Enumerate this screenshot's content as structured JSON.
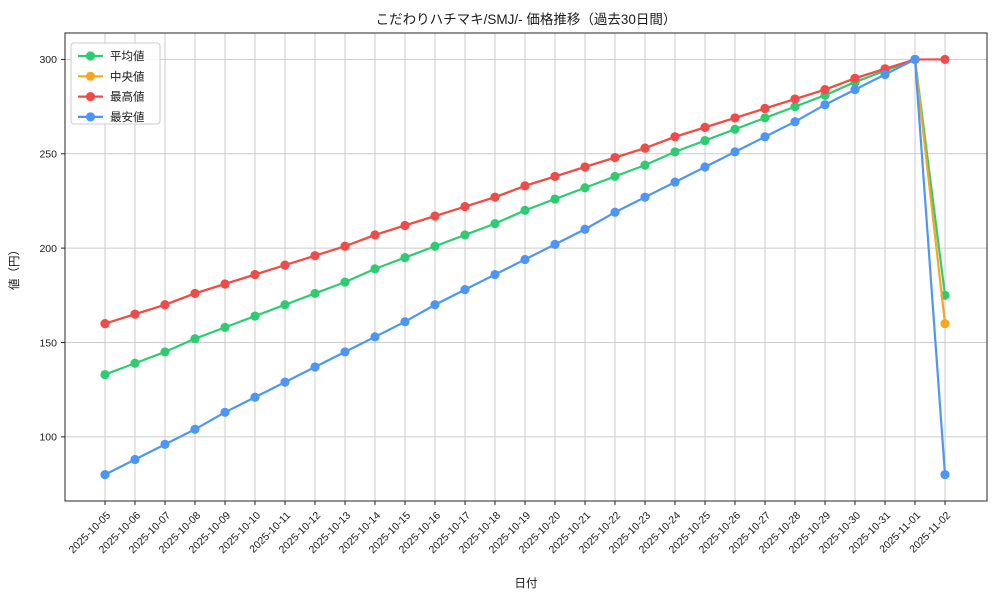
{
  "chart_data": {
    "type": "line",
    "title": "こだわりハチマキ/SMJ/- 価格推移（過去30日間）",
    "xlabel": "日付",
    "ylabel": "値（円）",
    "legend_position": "upper left",
    "grid": true,
    "ylim": [
      66,
      314
    ],
    "yticks": [
      100,
      150,
      200,
      250,
      300
    ],
    "x": [
      "2025-10-05",
      "2025-10-06",
      "2025-10-07",
      "2025-10-08",
      "2025-10-09",
      "2025-10-10",
      "2025-10-11",
      "2025-10-12",
      "2025-10-13",
      "2025-10-14",
      "2025-10-15",
      "2025-10-16",
      "2025-10-17",
      "2025-10-18",
      "2025-10-19",
      "2025-10-20",
      "2025-10-21",
      "2025-10-22",
      "2025-10-23",
      "2025-10-24",
      "2025-10-25",
      "2025-10-26",
      "2025-10-27",
      "2025-10-28",
      "2025-10-29",
      "2025-10-30",
      "2025-10-31",
      "2025-11-01",
      "2025-11-02"
    ],
    "series": [
      {
        "name": "平均値",
        "color": "#2ecc71",
        "values": [
          133,
          139,
          145,
          152,
          158,
          164,
          170,
          176,
          182,
          189,
          195,
          201,
          207,
          213,
          220,
          226,
          232,
          238,
          244,
          251,
          257,
          263,
          269,
          275,
          281,
          288,
          294,
          300,
          175
        ]
      },
      {
        "name": "中央値",
        "color": "#f5a623",
        "values": [
          160,
          165,
          170,
          176,
          181,
          186,
          191,
          196,
          201,
          207,
          212,
          217,
          222,
          227,
          233,
          238,
          243,
          248,
          253,
          259,
          264,
          269,
          274,
          279,
          284,
          290,
          295,
          300,
          160
        ]
      },
      {
        "name": "最高値",
        "color": "#ef4b4b",
        "values": [
          160,
          165,
          170,
          176,
          181,
          186,
          191,
          196,
          201,
          207,
          212,
          217,
          222,
          227,
          233,
          238,
          243,
          248,
          253,
          259,
          264,
          269,
          274,
          279,
          284,
          290,
          295,
          300,
          300
        ]
      },
      {
        "name": "最安値",
        "color": "#4d96f5",
        "values": [
          80,
          88,
          96,
          104,
          113,
          121,
          129,
          137,
          145,
          153,
          161,
          170,
          178,
          186,
          194,
          202,
          210,
          219,
          227,
          235,
          243,
          251,
          259,
          267,
          276,
          284,
          292,
          300,
          80
        ]
      }
    ],
    "colors": {
      "grid": "#cccccc",
      "axis_border": "#262626",
      "legend_border": "#cccccc",
      "legend_background": "#ffffff"
    }
  }
}
